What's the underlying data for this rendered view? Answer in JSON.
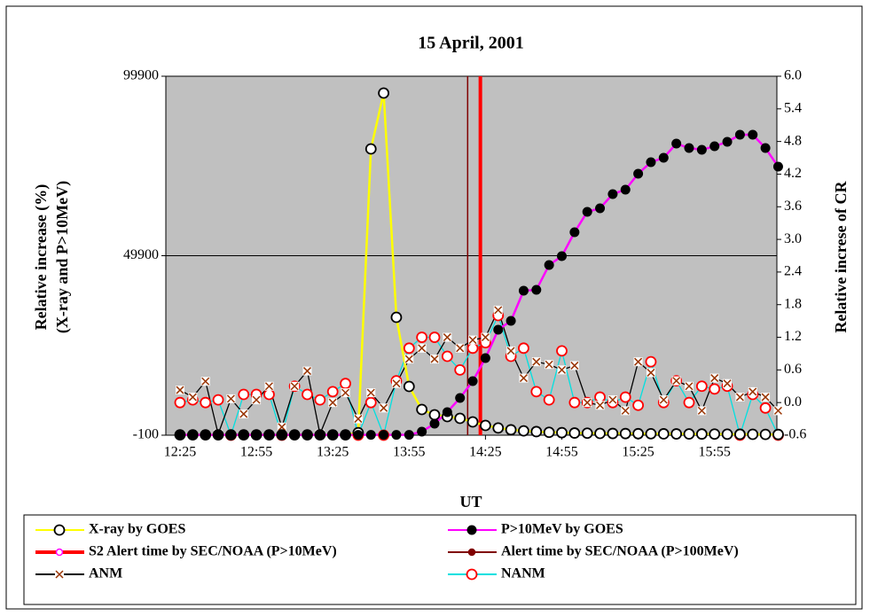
{
  "chart_data": {
    "type": "line",
    "title": "15 April, 2001",
    "x_label": "UT",
    "y_label": [
      "Relative increase (%)",
      "(X-ray and P>10MeV)"
    ],
    "y2_label": "Relative increse of CR",
    "categories": [
      "12:25",
      null,
      null,
      null,
      null,
      null,
      "12:55",
      null,
      null,
      null,
      null,
      null,
      "13:25",
      null,
      null,
      null,
      null,
      null,
      "13:55",
      null,
      null,
      null,
      null,
      null,
      "14:25",
      null,
      null,
      null,
      null,
      null,
      "14:55",
      null,
      null,
      null,
      null,
      null,
      "15:25",
      null,
      null,
      null,
      null,
      null,
      "15:55",
      null,
      null,
      null,
      null,
      null
    ],
    "ylim": [
      -100,
      99900
    ],
    "yticks": [
      -100,
      49900,
      99900
    ],
    "y2lim": [
      -0.6,
      6.0
    ],
    "y2ticks": [
      -0.6,
      {
        "value": 0,
        "label": "0.0"
      },
      0.6,
      1.2,
      1.8,
      2.4,
      {
        "value": 3,
        "label": "3.0"
      },
      3.6,
      4.2,
      4.8,
      5.4,
      {
        "value": 6,
        "label": "6.0"
      }
    ],
    "grid": true,
    "series": [
      {
        "name": "NANM",
        "color": "#00e0e0",
        "marker": "circle",
        "marker_color": "#ff0000",
        "axis": "y2",
        "values": [
          0.0,
          0.05,
          0.0,
          0.05,
          -0.6,
          0.15,
          0.15,
          0.15,
          -0.6,
          0.3,
          0.15,
          0.05,
          0.2,
          0.35,
          -0.6,
          0.0,
          -0.6,
          0.4,
          1.0,
          1.2,
          1.2,
          0.85,
          0.6,
          1.0,
          1.1,
          1.6,
          0.85,
          1.0,
          0.2,
          0.05,
          0.95,
          0.0,
          0.0,
          0.1,
          0.0,
          0.1,
          -0.05,
          0.75,
          0.0,
          0.4,
          0.0,
          0.3,
          0.25,
          0.3,
          -0.6,
          0.15,
          -0.1,
          -0.6
        ]
      },
      {
        "name": "ANM",
        "color": "#000000",
        "marker": "x",
        "marker_color": "#993300",
        "axis": "y2",
        "values": [
          0.23,
          0.1,
          0.39,
          -0.58,
          0.07,
          -0.21,
          0.05,
          0.3,
          -0.45,
          0.3,
          0.58,
          -0.58,
          0.0,
          0.18,
          -0.3,
          0.18,
          -0.1,
          0.35,
          0.8,
          1.0,
          0.8,
          1.2,
          1.0,
          1.15,
          1.2,
          1.7,
          0.95,
          0.45,
          0.75,
          0.7,
          0.6,
          0.68,
          0.0,
          -0.05,
          0.05,
          -0.15,
          0.75,
          0.55,
          0.05,
          0.4,
          0.3,
          -0.15,
          0.45,
          0.35,
          0.1,
          0.2,
          0.1,
          -0.15
        ]
      },
      {
        "name": "X-ray by GOES",
        "color": "#ffff00",
        "marker": "circle",
        "marker_color": "#ffffff",
        "axis": "y",
        "values": [
          0,
          0,
          0,
          0,
          0,
          0,
          0,
          0,
          0,
          0,
          0,
          0,
          0,
          0,
          600,
          79650,
          95210,
          32740,
          13480,
          7060,
          5580,
          5090,
          4590,
          3600,
          2620,
          1900,
          1400,
          1100,
          900,
          700,
          600,
          500,
          450,
          400,
          380,
          350,
          320,
          300,
          280,
          260,
          240,
          220,
          200,
          180,
          160,
          140,
          120,
          100
        ]
      },
      {
        "name": "P>10MeV by GOES",
        "color": "#ff00ff",
        "marker": "dot",
        "marker_color": "#000000",
        "axis": "y",
        "values": [
          0,
          0,
          0,
          0,
          0,
          0,
          0,
          0,
          0,
          0,
          0,
          0,
          0,
          0,
          0,
          0,
          0,
          0,
          0,
          890,
          3110,
          6320,
          10270,
          14960,
          21380,
          29280,
          31750,
          40150,
          40390,
          47310,
          49780,
          56440,
          62120,
          63110,
          67060,
          68300,
          72740,
          75950,
          77180,
          81130,
          79900,
          79400,
          80390,
          81630,
          83600,
          83600,
          79900,
          74710
        ]
      }
    ],
    "alerts": [
      {
        "name": "S2 Alert time by SEC/NOAA (P>10MeV)",
        "color": "#ff0000",
        "marker_color": "#ff00ff",
        "time": "14:23"
      },
      {
        "name": "Alert time by SEC/NOAA (P>100MeV)",
        "color": "#800000",
        "marker_color": "#800000",
        "time": "14:18"
      }
    ]
  }
}
